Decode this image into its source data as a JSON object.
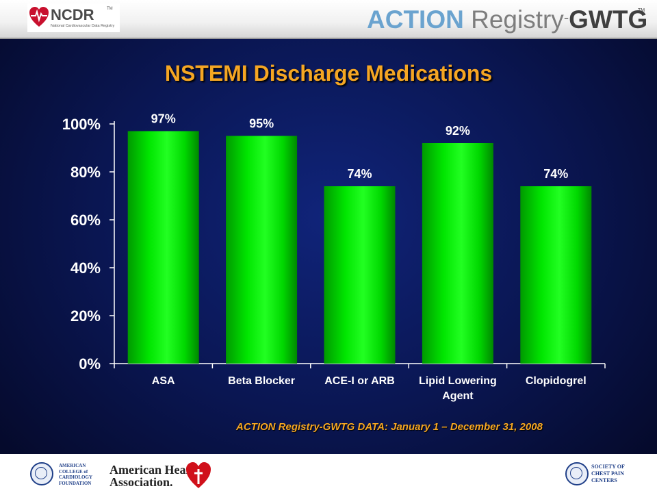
{
  "header": {
    "ncdr_name": "NCDR",
    "ncdr_tm": "TM",
    "ncdr_sub": "National Cardiovascular Data Registry",
    "action_part1": "ACTION",
    "action_part2": "Registry",
    "action_part3": "-",
    "action_part4": "GWTG",
    "action_tm": "TM",
    "brand_blue": "#6aa3cf"
  },
  "slide": {
    "background": "#0a1652",
    "accent": "#f5a623",
    "footnote": "ACTION Registry-GWTG DATA: January 1 – December 31, 2008"
  },
  "chart_data": {
    "type": "bar",
    "title": "NSTEMI Discharge Medications",
    "categories": [
      "ASA",
      "Beta Blocker",
      "ACE-I or ARB",
      "Lipid Lowering Agent",
      "Clopidogrel"
    ],
    "category_lines": [
      [
        "ASA"
      ],
      [
        "Beta Blocker"
      ],
      [
        "ACE-I or ARB"
      ],
      [
        "Lipid Lowering",
        "Agent"
      ],
      [
        "Clopidogrel"
      ]
    ],
    "values": [
      97,
      95,
      74,
      92,
      74
    ],
    "value_labels": [
      "97%",
      "95%",
      "74%",
      "92%",
      "74%"
    ],
    "ylim": [
      0,
      100
    ],
    "yticks": [
      0,
      20,
      40,
      60,
      80,
      100
    ],
    "ytick_labels": [
      "0%",
      "20%",
      "40%",
      "60%",
      "80%",
      "100%"
    ],
    "xlabel": "",
    "ylabel": "",
    "grid": false,
    "legend": "none",
    "bar_color": "#00ee00"
  },
  "footer": {
    "acc_lines": [
      "AMERICAN",
      "COLLEGE of",
      "CARDIOLOGY",
      "FOUNDATION"
    ],
    "aha_lines": [
      "American Heart",
      "Association."
    ],
    "scpc_lines": [
      "SOCIETY OF",
      "CHEST PAIN",
      "CENTERS"
    ]
  }
}
